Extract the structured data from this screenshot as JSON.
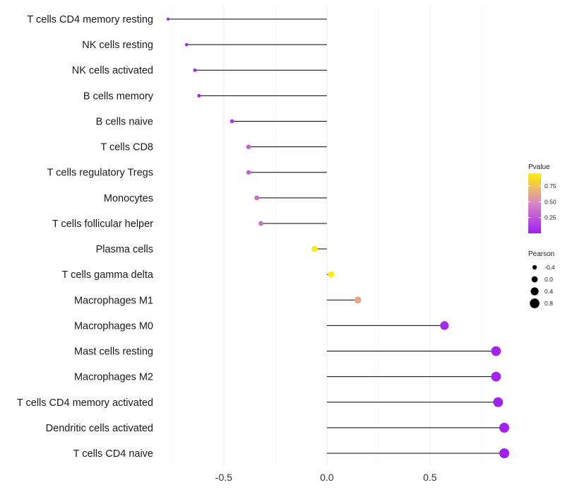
{
  "chart_data": {
    "type": "lollipop",
    "categories": [
      "T cells CD4 memory resting",
      "NK cells resting",
      "NK cells activated",
      "B cells memory",
      "B cells naive",
      "T cells CD8",
      "T cells regulatory  Tregs",
      "Monocytes",
      "T cells follicular helper",
      "Plasma cells",
      "T cells gamma delta",
      "Macrophages M1",
      "Macrophages M0",
      "Mast cells resting",
      "Macrophages M2",
      "T cells CD4 memory activated",
      "Dendritic cells activated",
      "T cells CD4 naive"
    ],
    "pearson": [
      -0.77,
      -0.68,
      -0.64,
      -0.62,
      -0.46,
      -0.38,
      -0.38,
      -0.34,
      -0.32,
      -0.06,
      0.02,
      0.15,
      0.57,
      0.82,
      0.82,
      0.83,
      0.86,
      0.86
    ],
    "pvalue": [
      0.0,
      0.01,
      0.01,
      0.02,
      0.12,
      0.28,
      0.29,
      0.33,
      0.36,
      0.92,
      0.98,
      0.62,
      0.05,
      0.02,
      0.02,
      0.01,
      0.0,
      0.0
    ],
    "xlim": [
      -0.77,
      0.86
    ],
    "x_ticks": [
      -0.5,
      0.0,
      0.5
    ],
    "x_tick_labels": [
      "-0.5",
      "0.0",
      "0.5"
    ],
    "xlabel": "",
    "ylabel": "",
    "grid": true,
    "color_scale": {
      "title": "Pvalue",
      "range": [
        0,
        0.95
      ],
      "ticks": [
        0.25,
        0.5,
        0.75
      ],
      "tick_labels": [
        "0.25",
        "0.50",
        "0.75"
      ],
      "low_color": "#A020F0",
      "mid_color": "#D985C5",
      "high_color": "#FFF000"
    },
    "size_scale": {
      "title": "Pearson",
      "values": [
        -0.4,
        0.0,
        0.4,
        0.8
      ],
      "labels": [
        "-0.4",
        "0.0",
        "0.4",
        "0.8"
      ]
    },
    "legend_position": "right"
  }
}
